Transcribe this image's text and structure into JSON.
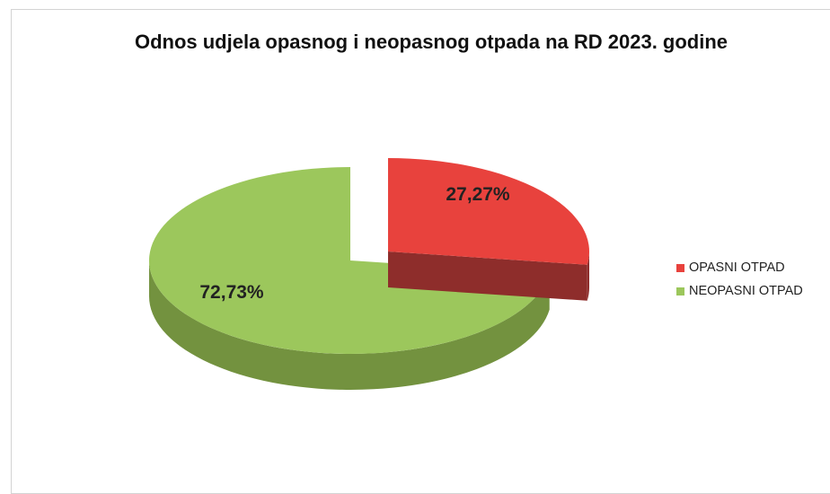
{
  "chart_data": {
    "type": "pie",
    "variant": "3d-exploded",
    "title": "Odnos udjela opasnog i neopasnog otpada na RD 2023. godine",
    "series": [
      {
        "name": "OPASNI OTPAD",
        "value": 27.27,
        "label": "27,27%",
        "color": "#e8423d",
        "side_color": "#8e2d2b"
      },
      {
        "name": "NEOPASNI OTPAD",
        "value": 72.73,
        "label": "72,73%",
        "color": "#9cc75c",
        "side_color": "#73923f"
      }
    ],
    "legend_position": "right"
  }
}
